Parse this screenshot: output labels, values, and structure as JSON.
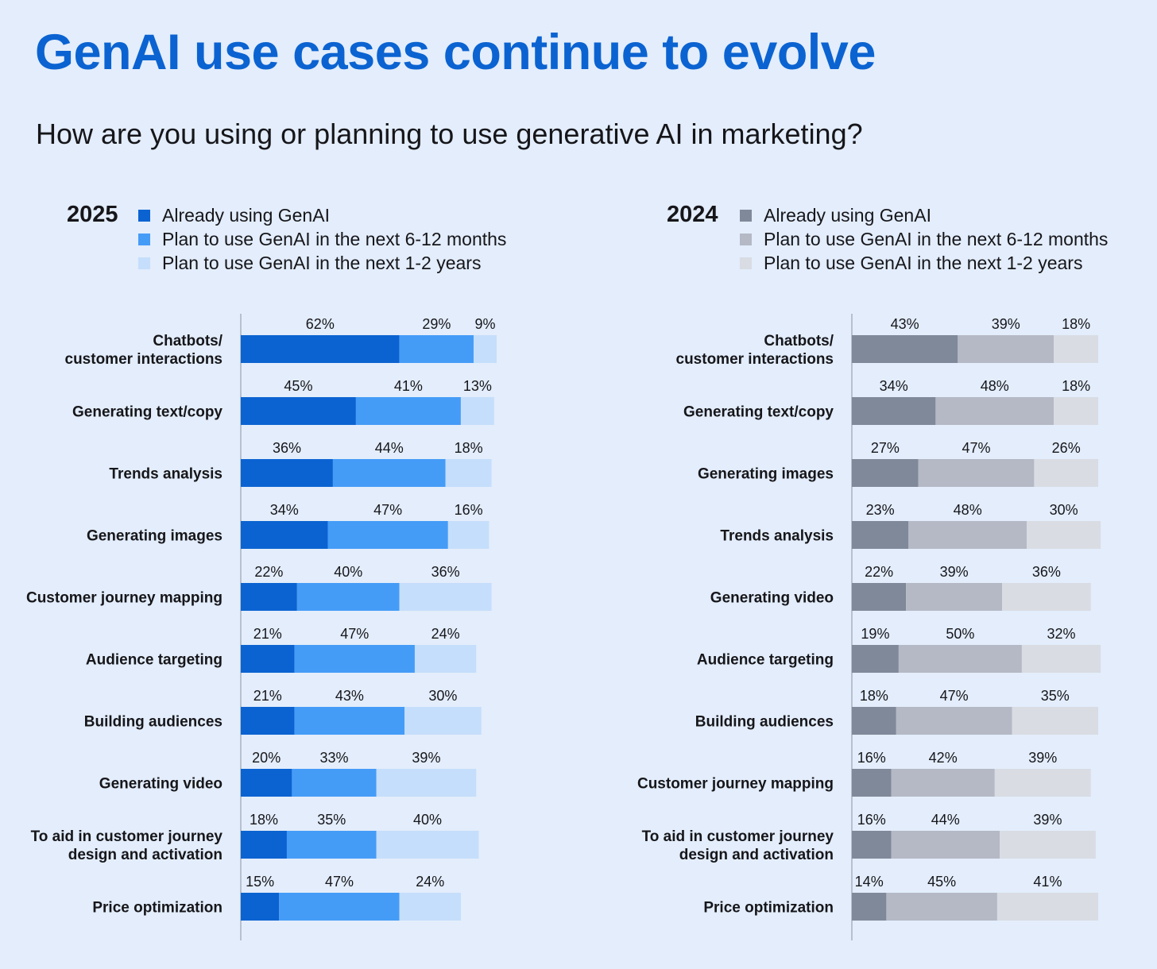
{
  "title": "GenAI use cases continue to evolve",
  "subtitle": "How are you using or planning to use generative AI in marketing?",
  "chart_data": [
    {
      "type": "bar",
      "orientation": "horizontal",
      "stacked": true,
      "year": "2025",
      "legend": [
        {
          "name": "Already using GenAI",
          "color": "#0b63d1"
        },
        {
          "name": "Plan to use GenAI in the next 6-12 months",
          "color": "#459cf7"
        },
        {
          "name": "Plan to use GenAI in the next 1-2 years",
          "color": "#c5defb"
        }
      ],
      "categories": [
        [
          "Chatbots/",
          "customer interactions"
        ],
        [
          "Generating text/copy"
        ],
        [
          "Trends analysis"
        ],
        [
          "Generating images"
        ],
        [
          "Customer journey mapping"
        ],
        [
          "Audience targeting"
        ],
        [
          "Building audiences"
        ],
        [
          "Generating video"
        ],
        [
          "To aid in customer journey",
          "design and activation"
        ],
        [
          "Price optimization"
        ]
      ],
      "series": [
        {
          "name": "Already using GenAI",
          "values": [
            62,
            45,
            36,
            34,
            22,
            21,
            21,
            20,
            18,
            15
          ]
        },
        {
          "name": "Plan to use GenAI in the next 6-12 months",
          "values": [
            29,
            41,
            44,
            47,
            40,
            47,
            43,
            33,
            35,
            47
          ]
        },
        {
          "name": "Plan to use GenAI in the next 1-2 years",
          "values": [
            9,
            13,
            18,
            16,
            36,
            24,
            30,
            39,
            40,
            24
          ]
        }
      ],
      "unit": "%"
    },
    {
      "type": "bar",
      "orientation": "horizontal",
      "stacked": true,
      "year": "2024",
      "legend": [
        {
          "name": "Already using GenAI",
          "color": "#808999"
        },
        {
          "name": "Plan to use GenAI in the next 6-12 months",
          "color": "#b5b9c5"
        },
        {
          "name": "Plan to use GenAI in the next 1-2 years",
          "color": "#d9dce3"
        }
      ],
      "categories": [
        [
          "Chatbots/",
          "customer interactions"
        ],
        [
          "Generating text/copy"
        ],
        [
          "Generating images"
        ],
        [
          "Trends analysis"
        ],
        [
          "Generating video"
        ],
        [
          "Audience targeting"
        ],
        [
          "Building audiences"
        ],
        [
          "Customer journey mapping"
        ],
        [
          "To aid in customer journey",
          "design and activation"
        ],
        [
          "Price optimization"
        ]
      ],
      "series": [
        {
          "name": "Already using GenAI",
          "values": [
            43,
            34,
            27,
            23,
            22,
            19,
            18,
            16,
            16,
            14
          ]
        },
        {
          "name": "Plan to use GenAI in the next 6-12 months",
          "values": [
            39,
            48,
            47,
            48,
            39,
            50,
            47,
            42,
            44,
            45
          ]
        },
        {
          "name": "Plan to use GenAI in the next 1-2 years",
          "values": [
            18,
            18,
            26,
            30,
            36,
            32,
            35,
            39,
            39,
            41
          ]
        }
      ],
      "unit": "%"
    }
  ]
}
